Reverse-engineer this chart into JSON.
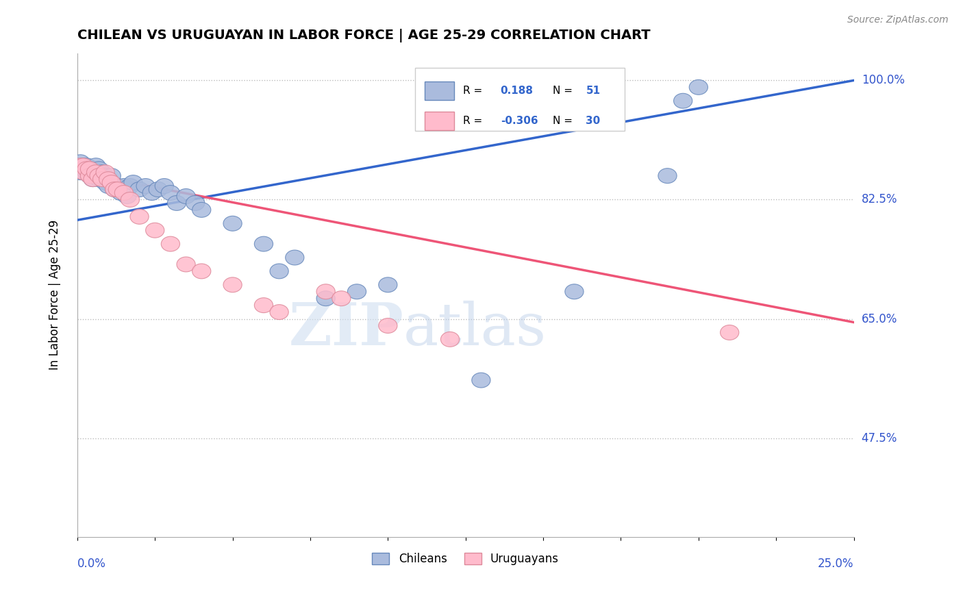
{
  "title": "CHILEAN VS URUGUAYAN IN LABOR FORCE | AGE 25-29 CORRELATION CHART",
  "source": "Source: ZipAtlas.com",
  "ylabel": "In Labor Force | Age 25-29",
  "xlim": [
    0.0,
    0.25
  ],
  "ylim": [
    0.33,
    1.04
  ],
  "yticks": [
    0.475,
    0.65,
    0.825,
    1.0
  ],
  "ytick_labels": [
    "47.5%",
    "65.0%",
    "82.5%",
    "100.0%"
  ],
  "xtick_labels": [
    "0.0%",
    "25.0%"
  ],
  "grid_color": "#bbbbbb",
  "background_color": "#ffffff",
  "chilean_color": "#aabbdd",
  "chilean_edge": "#6688bb",
  "uruguayan_color": "#ffbbcc",
  "uruguayan_edge": "#dd8899",
  "line_blue": "#3366cc",
  "line_pink": "#ee5577",
  "watermark_zip": "ZIP",
  "watermark_atlas": "atlas",
  "blue_line_x": [
    0.0,
    0.25
  ],
  "blue_line_y": [
    0.795,
    1.0
  ],
  "pink_line_x": [
    0.0,
    0.25
  ],
  "pink_line_y": [
    0.865,
    0.645
  ],
  "chilean_x": [
    0.001,
    0.001,
    0.002,
    0.002,
    0.003,
    0.003,
    0.004,
    0.004,
    0.005,
    0.005,
    0.005,
    0.006,
    0.006,
    0.007,
    0.007,
    0.008,
    0.008,
    0.009,
    0.009,
    0.01,
    0.01,
    0.011,
    0.012,
    0.013,
    0.014,
    0.015,
    0.016,
    0.017,
    0.018,
    0.02,
    0.022,
    0.024,
    0.026,
    0.028,
    0.03,
    0.032,
    0.035,
    0.038,
    0.04,
    0.05,
    0.06,
    0.065,
    0.07,
    0.08,
    0.09,
    0.1,
    0.13,
    0.16,
    0.19,
    0.195,
    0.2
  ],
  "chilean_y": [
    0.865,
    0.88,
    0.87,
    0.875,
    0.865,
    0.875,
    0.86,
    0.87,
    0.855,
    0.86,
    0.87,
    0.86,
    0.875,
    0.855,
    0.87,
    0.855,
    0.865,
    0.85,
    0.86,
    0.845,
    0.855,
    0.86,
    0.84,
    0.845,
    0.835,
    0.845,
    0.83,
    0.845,
    0.85,
    0.84,
    0.845,
    0.835,
    0.84,
    0.845,
    0.835,
    0.82,
    0.83,
    0.82,
    0.81,
    0.79,
    0.76,
    0.72,
    0.74,
    0.68,
    0.69,
    0.7,
    0.56,
    0.69,
    0.86,
    0.97,
    0.99
  ],
  "uruguayan_x": [
    0.001,
    0.002,
    0.002,
    0.003,
    0.004,
    0.004,
    0.005,
    0.006,
    0.007,
    0.008,
    0.009,
    0.01,
    0.011,
    0.012,
    0.013,
    0.015,
    0.017,
    0.02,
    0.025,
    0.03,
    0.035,
    0.04,
    0.05,
    0.06,
    0.065,
    0.08,
    0.085,
    0.1,
    0.12,
    0.21
  ],
  "uruguayan_y": [
    0.875,
    0.865,
    0.875,
    0.87,
    0.86,
    0.87,
    0.855,
    0.865,
    0.86,
    0.855,
    0.865,
    0.855,
    0.85,
    0.84,
    0.84,
    0.835,
    0.825,
    0.8,
    0.78,
    0.76,
    0.73,
    0.72,
    0.7,
    0.67,
    0.66,
    0.69,
    0.68,
    0.64,
    0.62,
    0.63
  ]
}
